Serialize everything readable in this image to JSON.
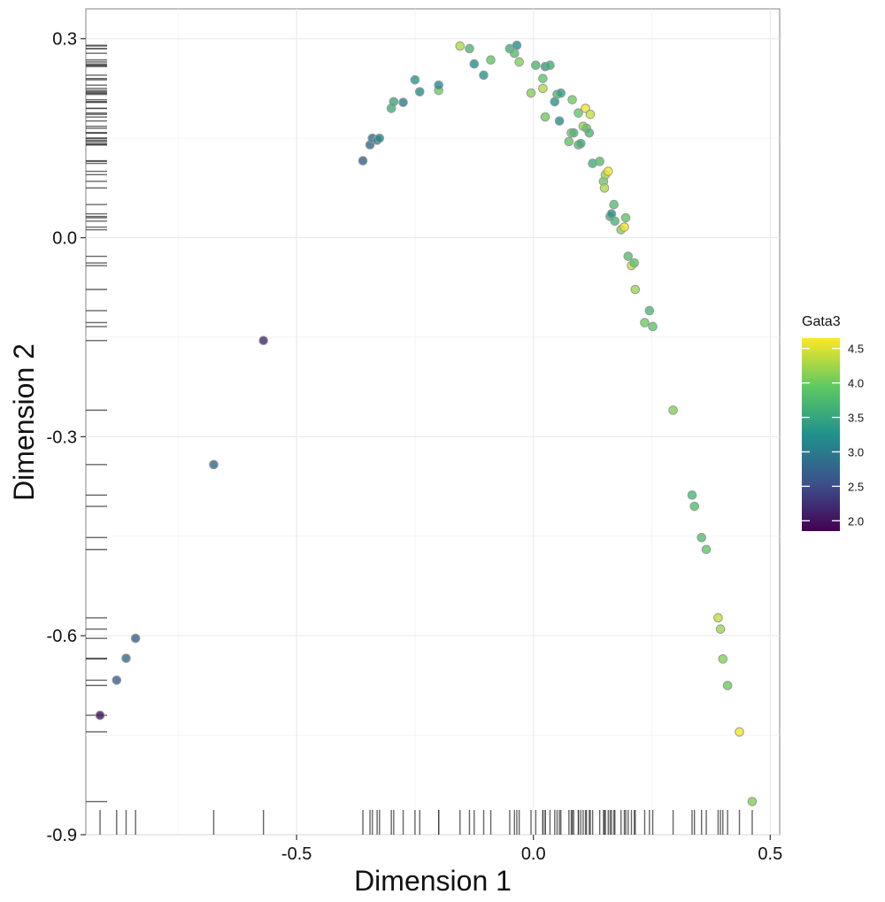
{
  "chart_data": {
    "type": "scatter",
    "title": "",
    "xlabel": "Dimension 1",
    "ylabel": "Dimension 2",
    "xlim": [
      -0.945,
      0.52
    ],
    "ylim": [
      -0.9,
      0.345
    ],
    "x_ticks": [
      -0.5,
      0.0,
      0.5
    ],
    "x_tick_labels": [
      "-0.5",
      "0.0",
      "0.5"
    ],
    "y_ticks": [
      -0.9,
      -0.6,
      -0.3,
      0.0,
      0.3
    ],
    "y_tick_labels": [
      "-0.9",
      "-0.6",
      "-0.3",
      "0.0",
      "0.3"
    ],
    "grid": true,
    "rugs": [
      "bottom",
      "left"
    ],
    "legend": {
      "title": "Gata3",
      "placement": "right",
      "min": 1.85,
      "max": 4.65,
      "ticks": [
        2.0,
        2.5,
        3.0,
        3.5,
        4.0,
        4.5
      ],
      "tick_labels": [
        "2.0",
        "2.5",
        "3.0",
        "3.5",
        "4.0",
        "4.5"
      ],
      "colormap": [
        "#440154",
        "#3b528b",
        "#21918c",
        "#5ec962",
        "#fde725"
      ]
    },
    "points": [
      {
        "x": -0.915,
        "y": -0.72,
        "v": 2.0
      },
      {
        "x": -0.88,
        "y": -0.667,
        "v": 2.7
      },
      {
        "x": -0.86,
        "y": -0.634,
        "v": 2.8
      },
      {
        "x": -0.84,
        "y": -0.604,
        "v": 2.7
      },
      {
        "x": -0.675,
        "y": -0.342,
        "v": 2.8
      },
      {
        "x": -0.57,
        "y": -0.155,
        "v": 2.2
      },
      {
        "x": -0.36,
        "y": 0.116,
        "v": 2.7
      },
      {
        "x": -0.345,
        "y": 0.14,
        "v": 2.8
      },
      {
        "x": -0.34,
        "y": 0.15,
        "v": 2.9
      },
      {
        "x": -0.33,
        "y": 0.147,
        "v": 3.0
      },
      {
        "x": -0.325,
        "y": 0.15,
        "v": 3.1
      },
      {
        "x": -0.3,
        "y": 0.195,
        "v": 3.6
      },
      {
        "x": -0.295,
        "y": 0.205,
        "v": 3.5
      },
      {
        "x": -0.275,
        "y": 0.204,
        "v": 3.0
      },
      {
        "x": -0.25,
        "y": 0.238,
        "v": 3.3
      },
      {
        "x": -0.24,
        "y": 0.22,
        "v": 3.2
      },
      {
        "x": -0.2,
        "y": 0.222,
        "v": 4.0
      },
      {
        "x": -0.2,
        "y": 0.23,
        "v": 3.2
      },
      {
        "x": -0.155,
        "y": 0.289,
        "v": 4.3
      },
      {
        "x": -0.135,
        "y": 0.285,
        "v": 3.7
      },
      {
        "x": -0.125,
        "y": 0.262,
        "v": 3.2
      },
      {
        "x": -0.105,
        "y": 0.245,
        "v": 3.3
      },
      {
        "x": -0.09,
        "y": 0.268,
        "v": 3.9
      },
      {
        "x": -0.05,
        "y": 0.285,
        "v": 3.6
      },
      {
        "x": -0.04,
        "y": 0.278,
        "v": 3.8
      },
      {
        "x": -0.035,
        "y": 0.29,
        "v": 3.2
      },
      {
        "x": -0.03,
        "y": 0.265,
        "v": 4.1
      },
      {
        "x": -0.005,
        "y": 0.218,
        "v": 4.1
      },
      {
        "x": 0.005,
        "y": 0.26,
        "v": 3.7
      },
      {
        "x": 0.02,
        "y": 0.225,
        "v": 4.3
      },
      {
        "x": 0.02,
        "y": 0.24,
        "v": 3.9
      },
      {
        "x": 0.025,
        "y": 0.182,
        "v": 4.0
      },
      {
        "x": 0.025,
        "y": 0.258,
        "v": 3.4
      },
      {
        "x": 0.035,
        "y": 0.26,
        "v": 3.6
      },
      {
        "x": 0.045,
        "y": 0.205,
        "v": 3.3
      },
      {
        "x": 0.05,
        "y": 0.216,
        "v": 3.7
      },
      {
        "x": 0.055,
        "y": 0.176,
        "v": 3.2
      },
      {
        "x": 0.058,
        "y": 0.218,
        "v": 3.4
      },
      {
        "x": 0.075,
        "y": 0.145,
        "v": 3.9
      },
      {
        "x": 0.08,
        "y": 0.158,
        "v": 4.1
      },
      {
        "x": 0.082,
        "y": 0.208,
        "v": 4.0
      },
      {
        "x": 0.085,
        "y": 0.158,
        "v": 3.7
      },
      {
        "x": 0.095,
        "y": 0.14,
        "v": 3.8
      },
      {
        "x": 0.095,
        "y": 0.188,
        "v": 3.9
      },
      {
        "x": 0.1,
        "y": 0.142,
        "v": 3.6
      },
      {
        "x": 0.105,
        "y": 0.168,
        "v": 4.2
      },
      {
        "x": 0.11,
        "y": 0.195,
        "v": 4.6
      },
      {
        "x": 0.112,
        "y": 0.165,
        "v": 3.9
      },
      {
        "x": 0.118,
        "y": 0.158,
        "v": 3.7
      },
      {
        "x": 0.12,
        "y": 0.186,
        "v": 4.4
      },
      {
        "x": 0.125,
        "y": 0.112,
        "v": 3.6
      },
      {
        "x": 0.14,
        "y": 0.115,
        "v": 3.8
      },
      {
        "x": 0.148,
        "y": 0.085,
        "v": 4.0
      },
      {
        "x": 0.15,
        "y": 0.075,
        "v": 4.3
      },
      {
        "x": 0.152,
        "y": 0.095,
        "v": 4.2
      },
      {
        "x": 0.158,
        "y": 0.1,
        "v": 4.6
      },
      {
        "x": 0.162,
        "y": 0.032,
        "v": 3.6
      },
      {
        "x": 0.165,
        "y": 0.036,
        "v": 3.3
      },
      {
        "x": 0.17,
        "y": 0.05,
        "v": 3.8
      },
      {
        "x": 0.172,
        "y": 0.025,
        "v": 3.7
      },
      {
        "x": 0.185,
        "y": 0.012,
        "v": 4.1
      },
      {
        "x": 0.192,
        "y": 0.016,
        "v": 4.6
      },
      {
        "x": 0.195,
        "y": 0.03,
        "v": 3.9
      },
      {
        "x": 0.2,
        "y": -0.028,
        "v": 3.8
      },
      {
        "x": 0.207,
        "y": -0.042,
        "v": 4.4
      },
      {
        "x": 0.213,
        "y": -0.038,
        "v": 3.9
      },
      {
        "x": 0.215,
        "y": -0.078,
        "v": 4.2
      },
      {
        "x": 0.235,
        "y": -0.128,
        "v": 4.0
      },
      {
        "x": 0.245,
        "y": -0.11,
        "v": 3.7
      },
      {
        "x": 0.252,
        "y": -0.134,
        "v": 3.9
      },
      {
        "x": 0.295,
        "y": -0.26,
        "v": 4.1
      },
      {
        "x": 0.335,
        "y": -0.388,
        "v": 3.7
      },
      {
        "x": 0.34,
        "y": -0.405,
        "v": 3.8
      },
      {
        "x": 0.355,
        "y": -0.452,
        "v": 3.8
      },
      {
        "x": 0.365,
        "y": -0.47,
        "v": 3.9
      },
      {
        "x": 0.39,
        "y": -0.573,
        "v": 4.4
      },
      {
        "x": 0.395,
        "y": -0.59,
        "v": 4.2
      },
      {
        "x": 0.4,
        "y": -0.635,
        "v": 4.1
      },
      {
        "x": 0.41,
        "y": -0.675,
        "v": 4.0
      },
      {
        "x": 0.435,
        "y": -0.745,
        "v": 4.6
      },
      {
        "x": 0.462,
        "y": -0.85,
        "v": 4.1
      }
    ]
  }
}
